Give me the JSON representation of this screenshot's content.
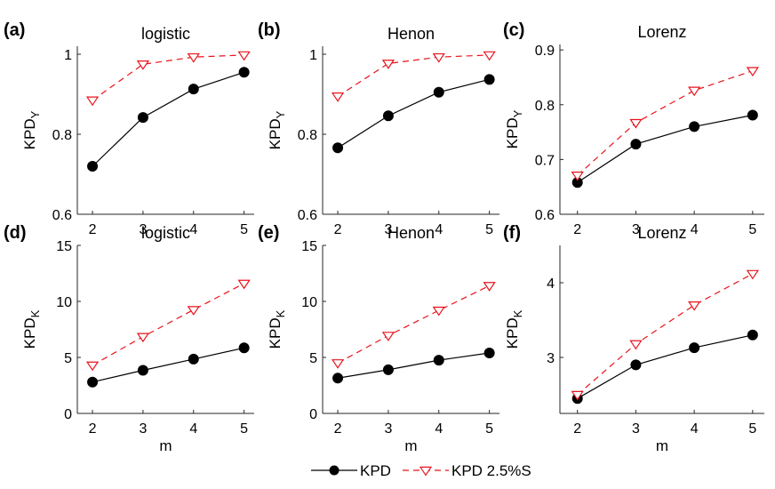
{
  "chart_data": [
    {
      "type": "line",
      "panel_label": "(a)",
      "title": "logistic",
      "ylabel_main": "KPD",
      "ylabel_sub": "Y",
      "xlabel": "",
      "x": [
        2,
        3,
        4,
        5
      ],
      "xlim": [
        1.7,
        5.2
      ],
      "xticks": [
        "2",
        "3",
        "4",
        "5"
      ],
      "ylim": [
        0.6,
        1.02
      ],
      "yticks": [
        0.6,
        0.8,
        1
      ],
      "ytick_labels": [
        "0.6",
        "0.8",
        "1"
      ],
      "series": [
        {
          "name": "KPD",
          "values": [
            0.72,
            0.842,
            0.913,
            0.955
          ]
        },
        {
          "name": "KPD 2.5%S",
          "values": [
            0.885,
            0.975,
            0.993,
            0.998
          ]
        }
      ]
    },
    {
      "type": "line",
      "panel_label": "(b)",
      "title": "Henon",
      "ylabel_main": "KPD",
      "ylabel_sub": "Y",
      "xlabel": "",
      "x": [
        2,
        3,
        4,
        5
      ],
      "xlim": [
        1.7,
        5.2
      ],
      "xticks": [
        "2",
        "3",
        "4",
        "5"
      ],
      "ylim": [
        0.6,
        1.02
      ],
      "yticks": [
        0.6,
        0.8,
        1
      ],
      "ytick_labels": [
        "0.6",
        "0.8",
        "1"
      ],
      "series": [
        {
          "name": "KPD",
          "values": [
            0.766,
            0.846,
            0.905,
            0.937
          ]
        },
        {
          "name": "KPD 2.5%S",
          "values": [
            0.895,
            0.977,
            0.993,
            0.998
          ]
        }
      ]
    },
    {
      "type": "line",
      "panel_label": "(c)",
      "title": "Lorenz",
      "ylabel_main": "KPD",
      "ylabel_sub": "Y",
      "xlabel": "",
      "x": [
        2,
        3,
        4,
        5
      ],
      "xlim": [
        1.7,
        5.2
      ],
      "xticks": [
        "2",
        "3",
        "4",
        "5"
      ],
      "ylim": [
        0.6,
        0.91
      ],
      "yticks": [
        0.6,
        0.7,
        0.8,
        0.9
      ],
      "ytick_labels": [
        "0.6",
        "0.7",
        "0.8",
        "0.9"
      ],
      "series": [
        {
          "name": "KPD",
          "values": [
            0.658,
            0.728,
            0.76,
            0.781
          ]
        },
        {
          "name": "KPD 2.5%S",
          "values": [
            0.671,
            0.767,
            0.826,
            0.862
          ]
        }
      ]
    },
    {
      "type": "line",
      "panel_label": "(d)",
      "title": "logistic",
      "ylabel_main": "KPD",
      "ylabel_sub": "K",
      "xlabel": "m",
      "x": [
        2,
        3,
        4,
        5
      ],
      "xlim": [
        1.7,
        5.2
      ],
      "xticks": [
        "2",
        "3",
        "4",
        "5"
      ],
      "ylim": [
        0,
        15
      ],
      "yticks": [
        0,
        5,
        10,
        15
      ],
      "ytick_labels": [
        "0",
        "5",
        "10",
        "15"
      ],
      "series": [
        {
          "name": "KPD",
          "values": [
            2.8,
            3.85,
            4.85,
            5.85
          ]
        },
        {
          "name": "KPD 2.5%S",
          "values": [
            4.3,
            6.85,
            9.25,
            11.6
          ]
        }
      ]
    },
    {
      "type": "line",
      "panel_label": "(e)",
      "title": "Henon",
      "ylabel_main": "KPD",
      "ylabel_sub": "K",
      "xlabel": "m",
      "x": [
        2,
        3,
        4,
        5
      ],
      "xlim": [
        1.7,
        5.2
      ],
      "xticks": [
        "2",
        "3",
        "4",
        "5"
      ],
      "ylim": [
        0,
        15
      ],
      "yticks": [
        0,
        5,
        10,
        15
      ],
      "ytick_labels": [
        "0",
        "5",
        "10",
        "15"
      ],
      "series": [
        {
          "name": "KPD",
          "values": [
            3.15,
            3.9,
            4.75,
            5.4
          ]
        },
        {
          "name": "KPD 2.5%S",
          "values": [
            4.5,
            6.95,
            9.2,
            11.4
          ]
        }
      ]
    },
    {
      "type": "line",
      "panel_label": "(f)",
      "title": "Lorenz",
      "ylabel_main": "KPD",
      "ylabel_sub": "K",
      "xlabel": "m",
      "x": [
        2,
        3,
        4,
        5
      ],
      "xlim": [
        1.7,
        5.2
      ],
      "xticks": [
        "2",
        "3",
        "4",
        "5"
      ],
      "ylim": [
        2.25,
        4.5
      ],
      "yticks": [
        3,
        4
      ],
      "ytick_labels": [
        "3",
        "4"
      ],
      "series": [
        {
          "name": "KPD",
          "values": [
            2.45,
            2.9,
            3.13,
            3.3
          ]
        },
        {
          "name": "KPD 2.5%S",
          "values": [
            2.5,
            3.18,
            3.7,
            4.12
          ]
        }
      ]
    }
  ],
  "legend": {
    "position": "bottom-center",
    "items": [
      {
        "label": "KPD",
        "color": "#000000",
        "marker": "filled-circle",
        "line": "solid"
      },
      {
        "label": "KPD 2.5%S",
        "color": "#e8131c",
        "marker": "down-triangle-open",
        "line": "dashed"
      }
    ]
  },
  "colors": {
    "kpd": "#000000",
    "kpd_surrogate": "#e8131c",
    "axis": "#262626"
  }
}
